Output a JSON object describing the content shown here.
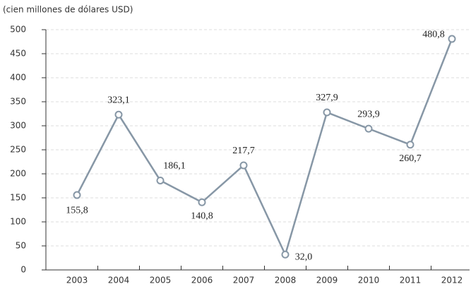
{
  "chart_data": {
    "type": "line",
    "y_label": "(cien millones de dólares USD)",
    "categories": [
      "2003",
      "2004",
      "2005",
      "2006",
      "2007",
      "2008",
      "2009",
      "2010",
      "2011",
      "2012"
    ],
    "values": [
      155.8,
      323.1,
      186.1,
      140.8,
      217.7,
      32.0,
      327.9,
      293.9,
      260.7,
      480.8
    ],
    "value_labels": [
      "155,8",
      "323,1",
      "186,1",
      "140,8",
      "217,7",
      "32,0",
      "327,9",
      "293,9",
      "260,7",
      "480,8"
    ],
    "color": "#8797a6",
    "ylim": [
      0,
      500
    ],
    "yticks": [
      0,
      50,
      100,
      150,
      200,
      250,
      300,
      350,
      400,
      450,
      500
    ],
    "grid": true
  }
}
